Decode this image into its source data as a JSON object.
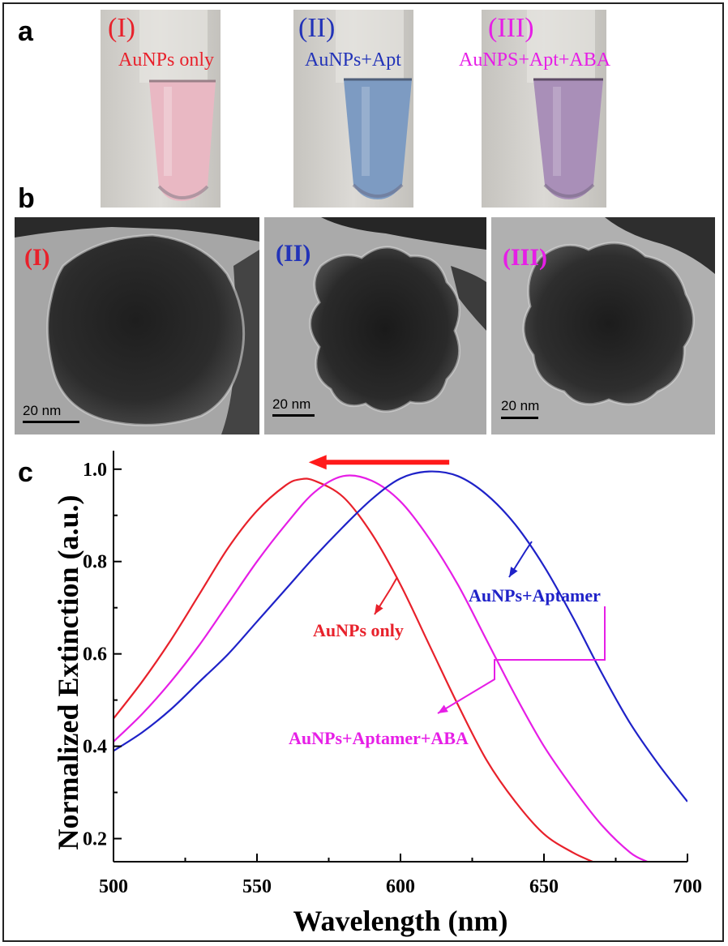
{
  "panel_a": {
    "letter": "a",
    "tubes": [
      {
        "numeral": "(I)",
        "caption": "AuNPs only",
        "color": "#e8212b",
        "liquid": "#e9b8c3"
      },
      {
        "numeral": "(II)",
        "caption": "AuNPs+Apt",
        "color": "#2233b8",
        "liquid": "#7d9bc2"
      },
      {
        "numeral": "(III)",
        "caption": "AuNPS+Apt+ABA",
        "color": "#e61ee6",
        "liquid": "#a98fb8"
      }
    ]
  },
  "panel_b": {
    "letter": "b",
    "images": [
      {
        "numeral": "(I)",
        "color": "#e8212b",
        "scale": "20 nm"
      },
      {
        "numeral": "(II)",
        "color": "#2233b8",
        "scale": "20 nm"
      },
      {
        "numeral": "(III)",
        "color": "#e61ee6",
        "scale": "20 nm"
      }
    ]
  },
  "panel_c": {
    "letter": "c",
    "chart_data": {
      "type": "line",
      "xlabel": "Wavelength (nm)",
      "ylabel": "Normalized Extinction (a.u.)",
      "xlim": [
        500,
        700
      ],
      "ylim": [
        0.15,
        1.04
      ],
      "xticks": [
        500,
        550,
        600,
        650,
        700
      ],
      "yticks": [
        0.2,
        0.4,
        0.6,
        0.8,
        1.0
      ],
      "ytick_labels": [
        "0.2",
        "0.4",
        "0.6",
        "0.8",
        "1.0"
      ],
      "grid": false,
      "series": [
        {
          "name": "AuNPs only",
          "color": "#e8212b",
          "x": [
            500,
            510,
            520,
            530,
            540,
            550,
            560,
            565,
            570,
            580,
            590,
            600,
            610,
            620,
            630,
            640,
            650,
            660,
            667
          ],
          "y": [
            0.46,
            0.54,
            0.63,
            0.73,
            0.83,
            0.91,
            0.965,
            0.978,
            0.975,
            0.94,
            0.86,
            0.75,
            0.62,
            0.49,
            0.37,
            0.28,
            0.21,
            0.17,
            0.15
          ]
        },
        {
          "name": "AuNPs+Aptamer+ABA",
          "color": "#e61ee6",
          "x": [
            500,
            510,
            520,
            530,
            540,
            550,
            560,
            570,
            580,
            590,
            600,
            610,
            620,
            630,
            640,
            650,
            660,
            670,
            680,
            686
          ],
          "y": [
            0.41,
            0.47,
            0.54,
            0.62,
            0.71,
            0.8,
            0.88,
            0.95,
            0.985,
            0.975,
            0.93,
            0.85,
            0.75,
            0.63,
            0.51,
            0.4,
            0.31,
            0.23,
            0.17,
            0.15
          ]
        },
        {
          "name": "AuNPs+Aptamer",
          "color": "#1f22c8",
          "x": [
            500,
            510,
            520,
            530,
            540,
            550,
            560,
            570,
            580,
            590,
            600,
            610,
            620,
            630,
            640,
            650,
            660,
            670,
            680,
            690,
            700
          ],
          "y": [
            0.39,
            0.43,
            0.48,
            0.54,
            0.6,
            0.67,
            0.74,
            0.81,
            0.875,
            0.935,
            0.98,
            0.995,
            0.985,
            0.945,
            0.88,
            0.79,
            0.68,
            0.56,
            0.45,
            0.36,
            0.28
          ]
        }
      ],
      "annotations": [
        {
          "text": "AuNPs+Aptamer",
          "color": "#1f22c8"
        },
        {
          "text": "AuNPs only",
          "color": "#e8212b"
        },
        {
          "text": "AuNPs+Aptamer+ABA",
          "color": "#e61ee6"
        }
      ],
      "shift_arrow": {
        "color": "#ff1a1a",
        "from_x": 617,
        "to_x": 568,
        "y": 1.015
      }
    }
  }
}
